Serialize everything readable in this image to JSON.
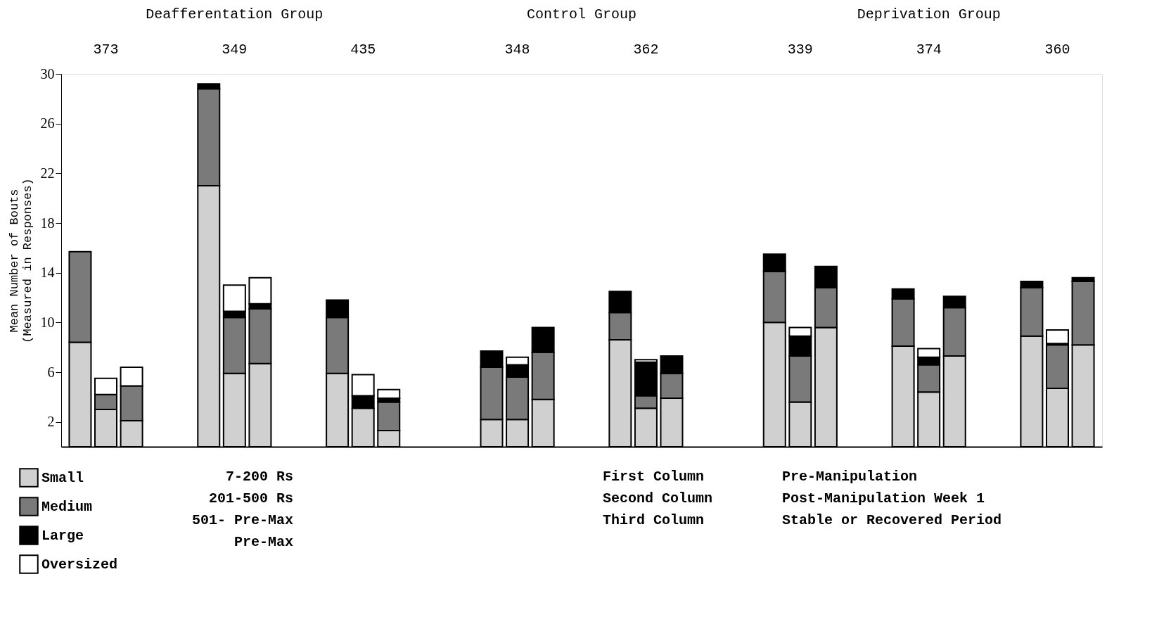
{
  "chart_data": [
    {
      "type": "bar",
      "ylabel": "Mean Number of Bouts\n(Measured in Responses)",
      "stacked": true,
      "legend": "bottom left",
      "tick_labels": "y",
      "ylim": [
        0,
        30
      ],
      "yticks": [
        2,
        6,
        10,
        14,
        18,
        22,
        26,
        30
      ],
      "categories": [
        null,
        null,
        null,
        null,
        null,
        null,
        null,
        null,
        null,
        null,
        null,
        null,
        null,
        null,
        null,
        null,
        null,
        null,
        null,
        null,
        null,
        null,
        null,
        null,
        null,
        null,
        null,
        null,
        null,
        null,
        null,
        null,
        null,
        null,
        null,
        null,
        null,
        null,
        null,
        null
      ],
      "annotations": [
        "Deafferentation Group",
        "Control Group",
        "Deprivation Group",
        "373",
        "349",
        "435",
        "348",
        "362",
        "339",
        "374",
        "360"
      ],
      "series": [
        {
          "name": "Small",
          "color": "#d0d0d0",
          "values": [
            8.4,
            3.0,
            2.1,
            null,
            null,
            21.0,
            5.9,
            6.7,
            null,
            null,
            5.9,
            3.1,
            1.3,
            null,
            null,
            null,
            2.2,
            2.2,
            3.8,
            null,
            null,
            8.6,
            3.1,
            3.9,
            null,
            null,
            null,
            10.0,
            3.6,
            9.6,
            null,
            null,
            8.1,
            4.4,
            7.3,
            null,
            null,
            8.9,
            4.7,
            8.2
          ]
        },
        {
          "name": "Medium",
          "color": "#7a7a7a",
          "values": [
            7.3,
            1.2,
            2.8,
            null,
            null,
            7.8,
            4.5,
            4.4,
            null,
            null,
            4.5,
            null,
            2.3,
            null,
            null,
            null,
            4.2,
            3.4,
            3.8,
            null,
            null,
            2.2,
            1.0,
            2.0,
            null,
            null,
            null,
            4.1,
            3.7,
            3.2,
            null,
            null,
            3.8,
            2.2,
            3.9,
            null,
            null,
            3.9,
            3.5,
            5.1
          ]
        },
        {
          "name": "Large",
          "color": "#000000",
          "values": [
            null,
            null,
            null,
            null,
            null,
            0.4,
            0.5,
            0.4,
            null,
            null,
            1.4,
            1.0,
            0.3,
            null,
            null,
            null,
            1.3,
            1.0,
            2.0,
            null,
            null,
            1.7,
            2.7,
            1.4,
            null,
            null,
            null,
            1.4,
            1.6,
            1.7,
            null,
            null,
            0.8,
            0.6,
            0.9,
            null,
            null,
            0.5,
            0.1,
            0.3
          ]
        },
        {
          "name": "Oversized",
          "color": "#ffffff",
          "values": [
            null,
            1.3,
            1.5,
            null,
            null,
            null,
            2.1,
            2.1,
            null,
            null,
            null,
            1.7,
            0.7,
            null,
            null,
            null,
            null,
            0.6,
            null,
            null,
            null,
            null,
            0.2,
            null,
            null,
            null,
            null,
            null,
            0.7,
            null,
            null,
            null,
            null,
            0.7,
            null,
            null,
            null,
            null,
            1.1,
            null
          ]
        }
      ]
    },
    {
      "type": "other",
      "annotations": [
        "7-200 Rs",
        "201-500 Rs",
        "501- Pre-Max",
        "Pre-Max",
        "First Column",
        "Pre-Manipulation",
        "Second Column",
        "Post-Manipulation Week 1",
        "Third Column",
        "Stable or Recovered Period"
      ]
    }
  ]
}
